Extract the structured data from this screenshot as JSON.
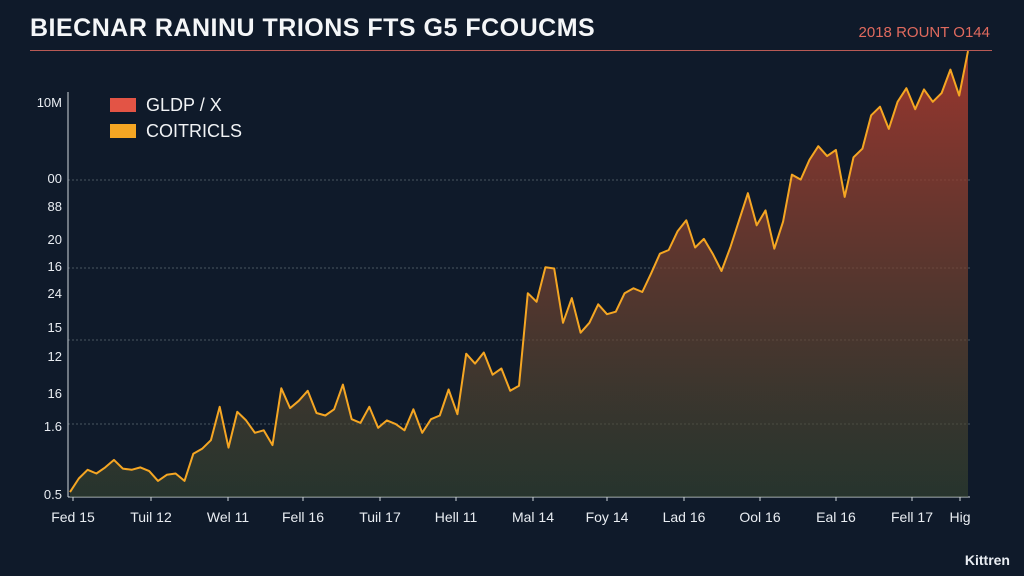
{
  "title": "BIECNAR RANINU TRIONS FTS G5 FCOUCMS",
  "corner_label": "2018 ROUNT O144",
  "watermark": "Kittren",
  "colors": {
    "background": "#0f1a2a",
    "line": "#f5a623",
    "area_top": "#b33a2e",
    "area_bottom": "#3a4a30",
    "legend_red": "#e35445",
    "legend_orange": "#f5a623",
    "grid": "#4a5560",
    "axis_text": "#e9edf2"
  },
  "chart_data": {
    "type": "area",
    "title": "BIECNAR RANINU TRIONS FTS G5 FCOUCMS",
    "legend": [
      {
        "name": "GLDP / X",
        "color": "#e35445"
      },
      {
        "name": "COITRICLS",
        "color": "#f5a623"
      }
    ],
    "legend_position": "top-left",
    "y_tick_labels": [
      "10M",
      "00",
      "88",
      "20",
      "16",
      "24",
      "15",
      "12",
      "16",
      "1.6",
      "0.5"
    ],
    "x_tick_labels": [
      "Fed 15",
      "Tuil 12",
      "Wel 11",
      "Fell 16",
      "Tuil 17",
      "Hell 11",
      "Mal 14",
      "Foy 14",
      "Lad 16",
      "Ool 16",
      "Eal 16",
      "Fell 17",
      "Hig"
    ],
    "grid": "horizontal dashed",
    "series": [
      {
        "name": "COITRICLS",
        "values": [
          0.4,
          1.5,
          2.2,
          1.9,
          2.4,
          3.0,
          2.3,
          2.2,
          2.4,
          2.1,
          1.3,
          1.8,
          1.9,
          1.3,
          3.5,
          3.9,
          4.6,
          7.3,
          4.0,
          6.9,
          6.2,
          5.2,
          5.4,
          4.2,
          8.8,
          7.2,
          7.8,
          8.6,
          6.8,
          6.6,
          7.1,
          9.1,
          6.3,
          6.0,
          7.3,
          5.6,
          6.2,
          5.9,
          5.4,
          7.1,
          5.2,
          6.3,
          6.6,
          8.7,
          6.7,
          11.6,
          10.8,
          11.7,
          9.9,
          10.4,
          8.6,
          9.0,
          16.5,
          15.8,
          18.6,
          18.5,
          14.1,
          16.1,
          13.3,
          14.1,
          15.6,
          14.8,
          15.0,
          16.5,
          16.9,
          16.6,
          18.1,
          19.7,
          20.0,
          21.5,
          22.4,
          20.2,
          20.9,
          19.7,
          18.3,
          20.2,
          22.4,
          24.6,
          22.0,
          23.2,
          20.1,
          22.3,
          26.1,
          25.7,
          27.3,
          28.4,
          27.6,
          28.1,
          24.3,
          27.5,
          28.2,
          30.9,
          31.6,
          29.8,
          32.0,
          33.1,
          31.4,
          33.0,
          32.0,
          32.7,
          34.6,
          32.5,
          36.1
        ]
      }
    ]
  }
}
